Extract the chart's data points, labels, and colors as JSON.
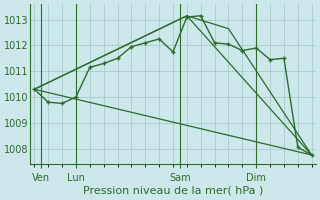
{
  "background_color": "#cce8ea",
  "grid_color": "#aacccc",
  "line_color": "#2d6a2d",
  "title": "Pression niveau de la mer( hPa )",
  "ylim": [
    1007.4,
    1013.6
  ],
  "yticks": [
    1008,
    1009,
    1010,
    1011,
    1012,
    1013
  ],
  "xlim": [
    -0.3,
    20.3
  ],
  "xlabel_ticks": [
    "Ven",
    "Lun",
    "Sam",
    "Dim"
  ],
  "xlabel_tick_positions": [
    0.5,
    3,
    10.5,
    16
  ],
  "vline_positions": [
    0.5,
    3,
    10.5,
    16
  ],
  "series_main": {
    "x": [
      0,
      1,
      2,
      3,
      4,
      5,
      6,
      7,
      8,
      9,
      10,
      11,
      12,
      13,
      14,
      15,
      16,
      17,
      18,
      19,
      20
    ],
    "y": [
      1010.3,
      1009.8,
      1009.75,
      1010.0,
      1011.15,
      1011.3,
      1011.5,
      1011.95,
      1012.1,
      1012.25,
      1011.75,
      1013.1,
      1013.15,
      1012.1,
      1012.05,
      1011.8,
      1011.9,
      1011.45,
      1011.5,
      1008.05,
      1007.75
    ]
  },
  "series_triangle_outer": {
    "x": [
      0,
      11,
      20
    ],
    "y": [
      1010.3,
      1013.15,
      1007.75
    ]
  },
  "series_triangle_mid": {
    "x": [
      0,
      11,
      14,
      20
    ],
    "y": [
      1010.3,
      1013.15,
      1012.65,
      1007.75
    ]
  },
  "series_diagonal": {
    "x": [
      0,
      20
    ],
    "y": [
      1010.3,
      1007.75
    ]
  },
  "title_fontsize": 8,
  "tick_fontsize": 7
}
